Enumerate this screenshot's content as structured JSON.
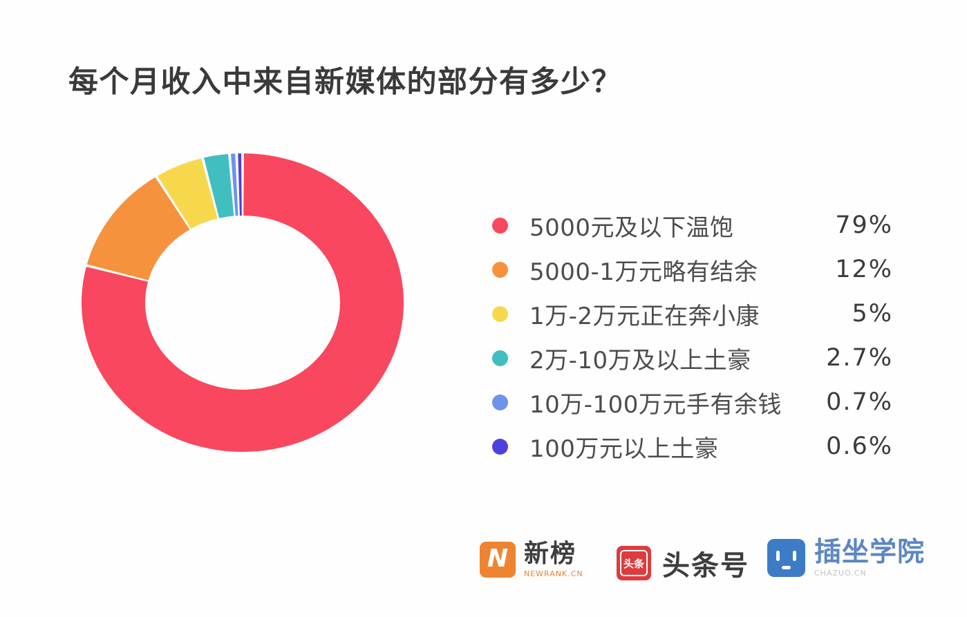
{
  "page": {
    "background": "#ffffff"
  },
  "chart_data": {
    "type": "pie",
    "subtype": "donut",
    "title": "每个月收入中来自新媒体的部分有多少？",
    "legend_position": "right",
    "start_angle_deg": 0,
    "direction": "clockwise",
    "donut_hole": true,
    "series": [
      {
        "label": "5000元及以下温饱",
        "value": 79,
        "value_label": "79%",
        "color": "#F8475E"
      },
      {
        "label": "5000-1万元略有结余",
        "value": 12,
        "value_label": "12%",
        "color": "#F6913E"
      },
      {
        "label": "1万-2万元正在奔小康",
        "value": 5,
        "value_label": "5%",
        "color": "#F7D84D"
      },
      {
        "label": "2万-10万及以上土豪",
        "value": 2.7,
        "value_label": "2.7%",
        "color": "#41BEC0"
      },
      {
        "label": "10万-100万元手有余钱",
        "value": 0.7,
        "value_label": "0.7%",
        "color": "#6D93EB"
      },
      {
        "label": "100万元以上土豪",
        "value": 0.6,
        "value_label": "0.6%",
        "color": "#4E41DB"
      }
    ]
  },
  "footer": {
    "newrank": {
      "name": "新榜",
      "sub": "NEWRANK.CN",
      "icon_letter": "N"
    },
    "toutiao": {
      "name": "头条号",
      "icon_text": "头条"
    },
    "chazuo": {
      "name": "插坐学院",
      "sub": "CHAZUO.CN"
    }
  }
}
